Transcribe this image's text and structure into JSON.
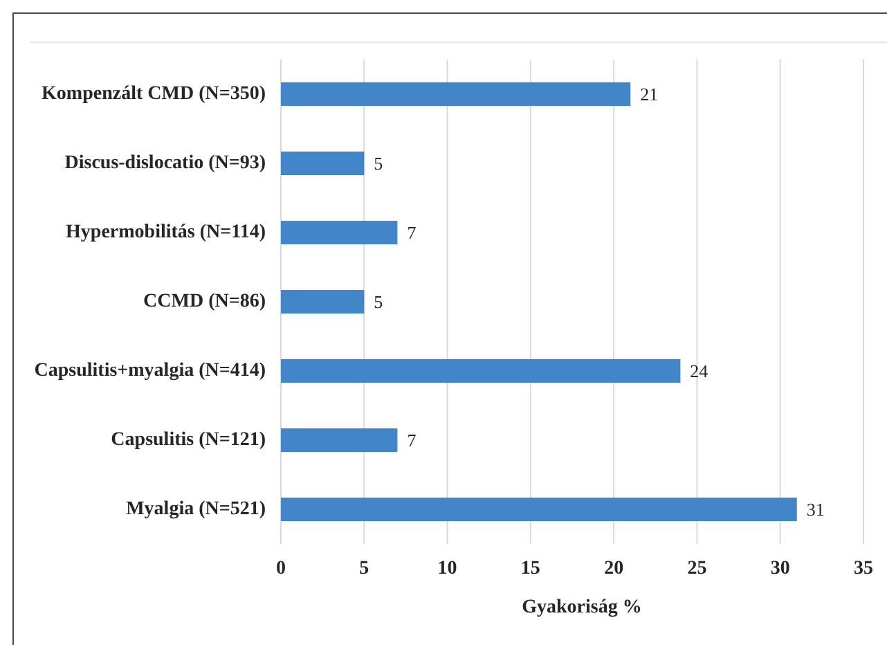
{
  "chart_data": {
    "type": "bar",
    "orientation": "horizontal",
    "categories": [
      "Kompenzált CMD (N=350)",
      "Discus-dislocatio (N=93)",
      "Hypermobilitás (N=114)",
      "CCMD (N=86)",
      "Capsulitis+myalgia (N=414)",
      "Capsulitis (N=121)",
      "Myalgia (N=521)"
    ],
    "values": [
      21,
      5,
      7,
      5,
      24,
      7,
      31
    ],
    "color": "#4285c9",
    "xlabel": "Gyakoriság %",
    "xlim": [
      0,
      35
    ],
    "xticks": [
      0,
      5,
      10,
      15,
      20,
      25,
      30,
      35
    ],
    "grid": "x",
    "data_labels": true
  }
}
